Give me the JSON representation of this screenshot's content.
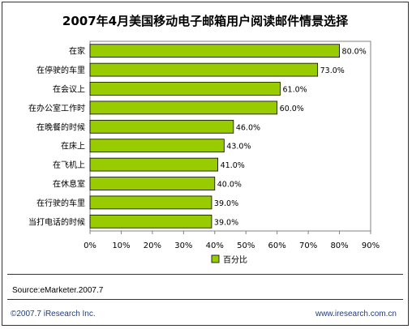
{
  "page": {
    "source": "Source:eMarketer.2007.7",
    "copyright": "©2007.7 iResearch Inc.",
    "website": "www.iresearch.com.cn"
  },
  "chart_data": {
    "type": "bar",
    "orientation": "horizontal",
    "title": "2007年4月美国移动电子邮箱用户阅读邮件情景选择",
    "categories": [
      "在家",
      "在停驶的车里",
      "在会议上",
      "在办公室工作时",
      "在晚餐的时候",
      "在床上",
      "在飞机上",
      "在休息室",
      "在行驶的车里",
      "当打电话的时候"
    ],
    "series": [
      {
        "name": "百分比",
        "values": [
          80.0,
          73.0,
          61.0,
          60.0,
          46.0,
          43.0,
          41.0,
          40.0,
          39.0,
          39.0
        ],
        "labels": [
          "80.0%",
          "73.0%",
          "61.0%",
          "60.0%",
          "46.0%",
          "43.0%",
          "41.0%",
          "40.0%",
          "39.0%",
          "39.0%"
        ]
      }
    ],
    "xlim": [
      0,
      90
    ],
    "xticks": [
      "0%",
      "10%",
      "20%",
      "30%",
      "40%",
      "50%",
      "60%",
      "70%",
      "80%",
      "90%"
    ],
    "grid": false,
    "legend": "bottom",
    "colors": {
      "bar": "#99cc00",
      "bar_border": "#000000",
      "plot_border": "#808080"
    }
  }
}
